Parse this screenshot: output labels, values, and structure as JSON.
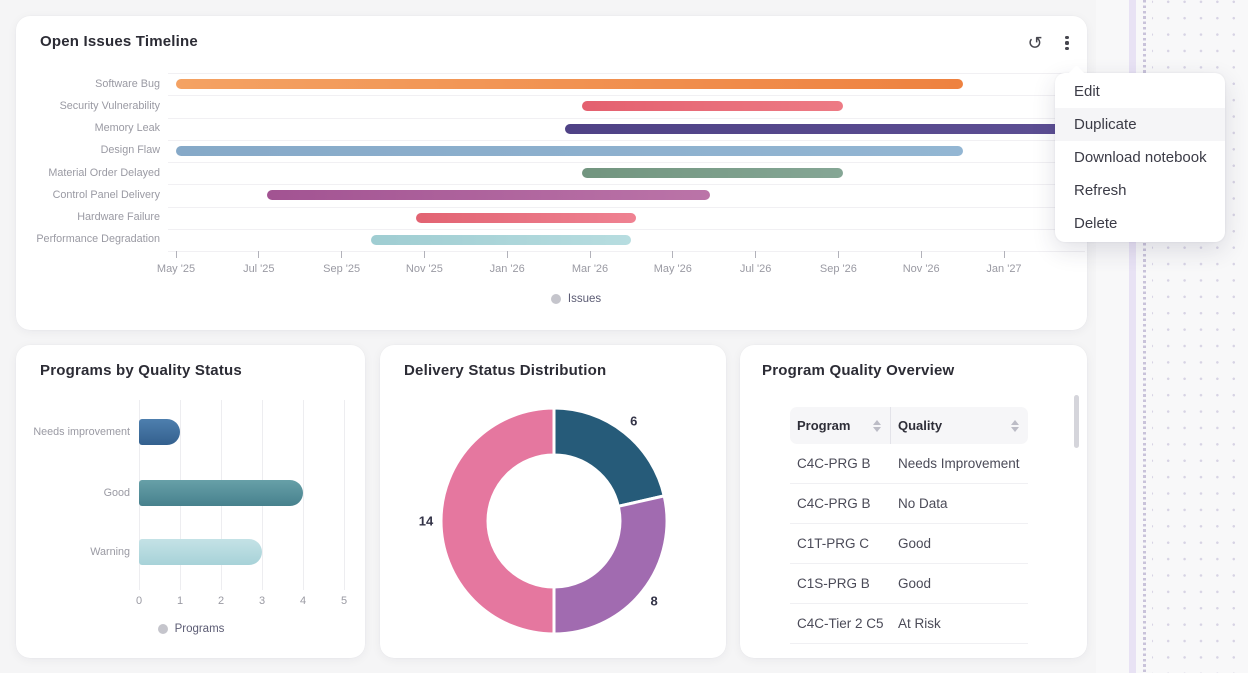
{
  "timeline_panel": {
    "title": "Open Issues Timeline",
    "legend_label": "Issues",
    "icons": {
      "refresh": "rotate-ccw",
      "menu": "kebab-vertical"
    }
  },
  "context_menu": {
    "items": [
      "Edit",
      "Duplicate",
      "Download notebook",
      "Refresh",
      "Delete"
    ],
    "highlighted": "Duplicate"
  },
  "programs_panel": {
    "title": "Programs by Quality Status",
    "legend_label": "Programs"
  },
  "donut_panel": {
    "title": "Delivery Status Distribution"
  },
  "table_panel": {
    "title": "Program Quality Overview",
    "columns": [
      "Program",
      "Quality"
    ],
    "rows": [
      [
        "C4C-PRG B",
        "Needs Improvement"
      ],
      [
        "C4C-PRG B",
        "No Data"
      ],
      [
        "C1T-PRG C",
        "Good"
      ],
      [
        "C1S-PRG B",
        "Good"
      ],
      [
        "C4C-Tier 2 C5",
        "At Risk"
      ]
    ]
  },
  "chart_data": [
    {
      "id": "open-issues-timeline",
      "type": "gantt",
      "title": "Open Issues Timeline",
      "legend": [
        "Issues"
      ],
      "legend_position": "bottom",
      "x_ticks": [
        "May '25",
        "Jul '25",
        "Sep '25",
        "Nov '25",
        "Jan '26",
        "Mar '26",
        "May '26",
        "Jul '26",
        "Sep '26",
        "Nov '26",
        "Jan '27"
      ],
      "rows": [
        {
          "label": "Software Bug",
          "start": "May 2025",
          "end": "Dec 2026",
          "start_m": 0,
          "end_m": 19,
          "color1": "#f4a263",
          "color2": "#ee8240"
        },
        {
          "label": "Security Vulnerability",
          "start": "Mar 2026",
          "end": "Sep 2026",
          "start_m": 9.8,
          "end_m": 16.1,
          "color1": "#e4606f",
          "color2": "#ed7b85"
        },
        {
          "label": "Memory Leak",
          "start": "Feb 2026",
          "end": "Mar 2027",
          "start_m": 9.4,
          "end_m": 22,
          "color1": "#4f4286",
          "color2": "#5d4f94"
        },
        {
          "label": "Design Flaw",
          "start": "May 2025",
          "end": "Dec 2026",
          "start_m": 0,
          "end_m": 19,
          "color1": "#86a9c8",
          "color2": "#93b6d3"
        },
        {
          "label": "Material Order Delayed",
          "start": "Mar 2026",
          "end": "Sep 2026",
          "start_m": 9.8,
          "end_m": 16.1,
          "color1": "#72957f",
          "color2": "#85a695"
        },
        {
          "label": "Control Panel Delivery",
          "start": "Jul 2025",
          "end": "Jun 2026",
          "start_m": 2.2,
          "end_m": 12.9,
          "color1": "#a25392",
          "color2": "#bb74a8"
        },
        {
          "label": "Hardware Failure",
          "start": "Nov 2025",
          "end": "Apr 2026",
          "start_m": 5.8,
          "end_m": 11.1,
          "color1": "#e26372",
          "color2": "#ef8292"
        },
        {
          "label": "Performance Degradation",
          "start": "Oct 2025",
          "end": "Apr 2026",
          "start_m": 4.7,
          "end_m": 11,
          "color1": "#9fcdd2",
          "color2": "#b7dde0"
        }
      ]
    },
    {
      "id": "programs-by-quality-status",
      "type": "bar",
      "orientation": "horizontal",
      "title": "Programs by Quality Status",
      "categories": [
        "Needs improvement",
        "Good",
        "Warning"
      ],
      "values": [
        1,
        4,
        3
      ],
      "colors": [
        [
          "#4e7fae",
          "#33608e"
        ],
        [
          "#67a0a8",
          "#47818d"
        ],
        [
          "#c4e2e6",
          "#a7d2d8"
        ]
      ],
      "x_ticks": [
        0,
        1,
        2,
        3,
        4,
        5
      ],
      "xlim": [
        0,
        5
      ],
      "legend": [
        "Programs"
      ],
      "grid": true
    },
    {
      "id": "delivery-status-distribution",
      "type": "donut",
      "title": "Delivery Status Distribution",
      "values": [
        6,
        8,
        14
      ],
      "labels": [
        "6",
        "8",
        "14"
      ],
      "colors": [
        "#265b79",
        "#a16bb0",
        "#e5779f"
      ],
      "start_angle_deg": 0,
      "clockwise": true
    }
  ]
}
